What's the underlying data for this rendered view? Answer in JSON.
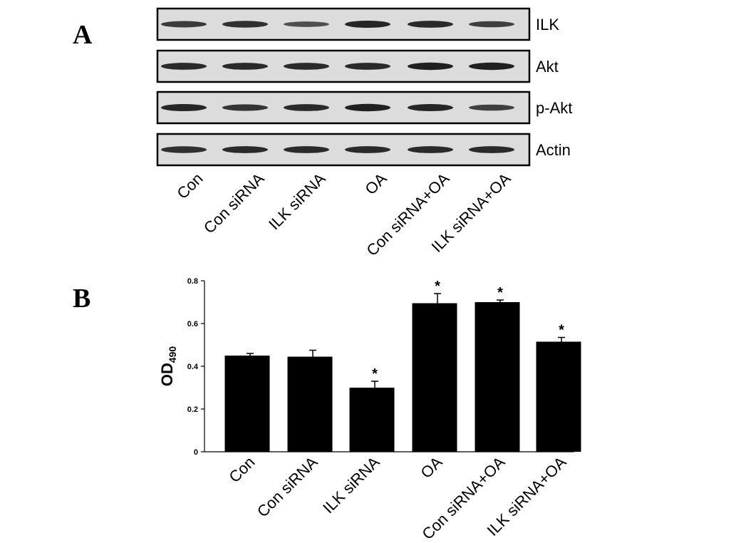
{
  "panels": {
    "a": "A",
    "b": "B"
  },
  "blot": {
    "rows": [
      {
        "label": "ILK",
        "intensity": [
          0.65,
          0.75,
          0.45,
          0.85,
          0.8,
          0.6
        ]
      },
      {
        "label": "Akt",
        "intensity": [
          0.8,
          0.8,
          0.8,
          0.8,
          0.9,
          0.9
        ]
      },
      {
        "label": "p-Akt",
        "intensity": [
          0.85,
          0.7,
          0.8,
          0.9,
          0.85,
          0.6
        ]
      },
      {
        "label": "Actin",
        "intensity": [
          0.75,
          0.8,
          0.8,
          0.8,
          0.8,
          0.8
        ]
      }
    ],
    "lanes": [
      "Con",
      "Con siRNA",
      "ILK siRNA",
      "OA",
      "Con siRNA+OA",
      "ILK siRNA+OA"
    ]
  },
  "chart_data": {
    "type": "bar",
    "categories": [
      "Con",
      "Con siRNA",
      "ILK siRNA",
      "OA",
      "Con siRNA+OA",
      "ILK siRNA+OA"
    ],
    "values": [
      0.45,
      0.445,
      0.3,
      0.695,
      0.7,
      0.515
    ],
    "errors": [
      0.01,
      0.03,
      0.03,
      0.045,
      0.01,
      0.02
    ],
    "significance": [
      "",
      "",
      "*",
      "*",
      "*",
      "*"
    ],
    "ylabel_main": "OD",
    "ylabel_sub": "490",
    "yticks": [
      "0",
      "0.2",
      "0.4",
      "0.6",
      "0.8"
    ],
    "ylim": [
      0,
      0.8
    ],
    "bar_color": "#000000"
  }
}
